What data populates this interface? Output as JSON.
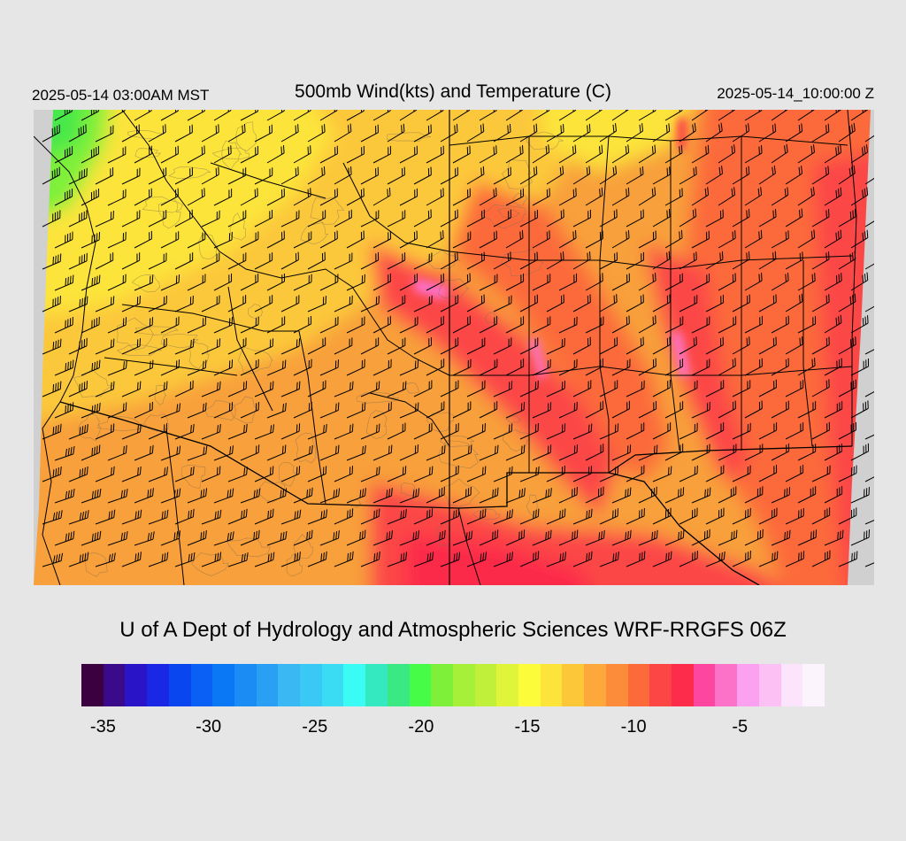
{
  "header": {
    "left_time": "2025-05-14 03:00AM MST",
    "title": "500mb Wind(kts) and Temperature (C)",
    "right_time": "2025-05-14_10:00:00 Z"
  },
  "footer": {
    "credit": "U of A Dept of Hydrology and Atmospheric Sciences WRF-RRGFS 06Z"
  },
  "legend": {
    "colors": [
      "#3a0040",
      "#3a0a8a",
      "#2a14c8",
      "#1a28e6",
      "#0a46f0",
      "#0a60f4",
      "#0a78f4",
      "#1a8cf4",
      "#2aa0f4",
      "#3ab8f4",
      "#3ac8f4",
      "#3adcf4",
      "#3afcf4",
      "#34e8c0",
      "#3ae884",
      "#46fc46",
      "#7ef03a",
      "#a6f03a",
      "#c0f03a",
      "#e0f43a",
      "#fcfc3a",
      "#fce43a",
      "#fcc83a",
      "#fca83a",
      "#fc8c3a",
      "#fc6a3a",
      "#fc4646",
      "#fc2c4a",
      "#fc46a0",
      "#fc72c8",
      "#fca0f0",
      "#fcc0f4",
      "#fce4fc",
      "#fcf4fc"
    ],
    "tick_labels": [
      {
        "label": "-35",
        "frac": 0.029
      },
      {
        "label": "-30",
        "frac": 0.171
      },
      {
        "label": "-25",
        "frac": 0.314
      },
      {
        "label": "-20",
        "frac": 0.457
      },
      {
        "label": "-15",
        "frac": 0.6
      },
      {
        "label": "-10",
        "frac": 0.743
      },
      {
        "label": "-5",
        "frac": 0.886
      }
    ]
  },
  "map_colors": {
    "cold_green": "#46e84a",
    "yellow": "#fcfc3a",
    "yellow_orange": "#fcc83a",
    "orange": "#f8a03a",
    "dark_orange": "#fc8c3a",
    "red": "#fc4646",
    "crimson": "#fc2c4a",
    "pink": "#fc72c8",
    "outside": "#d0d0d0"
  }
}
